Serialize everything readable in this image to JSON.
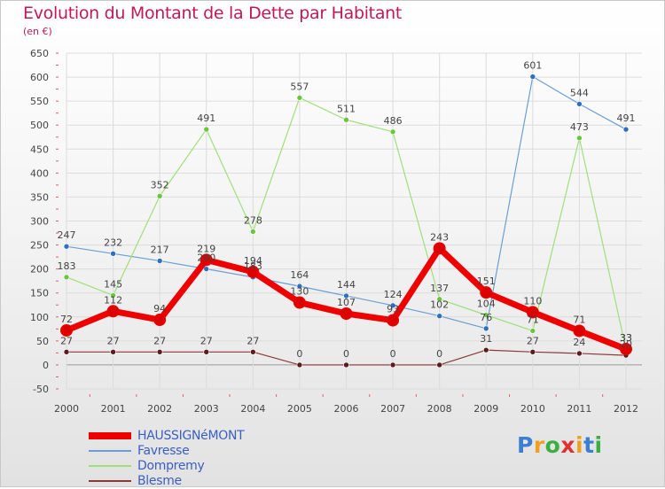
{
  "header": {
    "title": "Evolution du Montant de la Dette par Habitant",
    "subtitle": "(en €)"
  },
  "colors": {
    "title": "#c2185b",
    "axis_text": "#444444",
    "grid": "#dcdcdc",
    "tick_marks": "#e06060",
    "zero_line": "#999999",
    "legend_text": "#3b5fc0"
  },
  "chart_data": {
    "type": "line",
    "title": "Evolution du Montant de la Dette par Habitant",
    "subtitle": "(en €)",
    "xlabel": "",
    "ylabel": "",
    "x": [
      "2000",
      "2001",
      "2002",
      "2003",
      "2004",
      "2005",
      "2006",
      "2007",
      "2008",
      "2009",
      "2010",
      "2011",
      "2012"
    ],
    "ylim": [
      -50,
      650
    ],
    "yticks": [
      -50,
      0,
      50,
      100,
      150,
      200,
      250,
      300,
      350,
      400,
      450,
      500,
      550,
      600,
      650
    ],
    "ytick_labels": [
      "-50",
      "0",
      "50",
      "100",
      "150",
      "200",
      "250",
      "300",
      "350",
      "400",
      "450",
      "500",
      "550",
      "600",
      "650"
    ],
    "grid": true,
    "legend_position": "bottom-left",
    "series": [
      {
        "name": "HAUSSIGNéMONT",
        "color": "#ee0000",
        "marker": "#dd0000",
        "width": 7,
        "values": [
          72,
          112,
          94,
          219,
          194,
          130,
          107,
          93,
          243,
          151,
          110,
          71,
          33
        ],
        "labels": [
          "72",
          "112",
          "94",
          "219",
          "194",
          "130",
          "107",
          "93",
          "243",
          "151",
          "110",
          "71",
          "33"
        ]
      },
      {
        "name": "Favresse",
        "color": "#6a9fd4",
        "marker": "#2f6fbf",
        "width": 1.2,
        "values": [
          247,
          232,
          217,
          200,
          183,
          164,
          144,
          124,
          102,
          76,
          601,
          544,
          491
        ],
        "labels": [
          "247",
          "232",
          "217",
          "200",
          "183",
          "164",
          "144",
          "124",
          "102",
          "76",
          "601",
          "544",
          "491"
        ]
      },
      {
        "name": "Dompremy",
        "color": "#9ee07a",
        "marker": "#6cc63c",
        "width": 1.2,
        "values": [
          183,
          145,
          352,
          491,
          278,
          557,
          511,
          486,
          137,
          104,
          71,
          473,
          33
        ],
        "labels": [
          "183",
          "145",
          "352",
          "491",
          "278",
          "557",
          "511",
          "486",
          "137",
          "104",
          "71",
          "473",
          "33"
        ]
      },
      {
        "name": "Blesme",
        "color": "#8a3a3a",
        "marker": "#5a1c1c",
        "width": 1.2,
        "values": [
          27,
          27,
          27,
          27,
          27,
          0,
          0,
          0,
          0,
          31,
          27,
          24,
          20
        ],
        "labels": [
          "27",
          "27",
          "27",
          "27",
          "27",
          "0",
          "0",
          "0",
          "0",
          "31",
          "27",
          "24",
          "20"
        ]
      }
    ]
  },
  "legend": {
    "items": [
      {
        "label": "HAUSSIGNéMONT",
        "color": "#ee0000"
      },
      {
        "label": "Favresse",
        "color": "#6a9fd4"
      },
      {
        "label": "Dompremy",
        "color": "#9ee07a"
      },
      {
        "label": "Blesme",
        "color": "#8a3a3a"
      }
    ]
  },
  "logo": {
    "letters": [
      "P",
      "r",
      "o",
      "x",
      "i",
      "t",
      "i"
    ],
    "colors": [
      "#3a7fd0",
      "#f0a020",
      "#3ab040",
      "#e03030",
      "#f0a020",
      "#3a7fd0",
      "#3ab040"
    ]
  }
}
